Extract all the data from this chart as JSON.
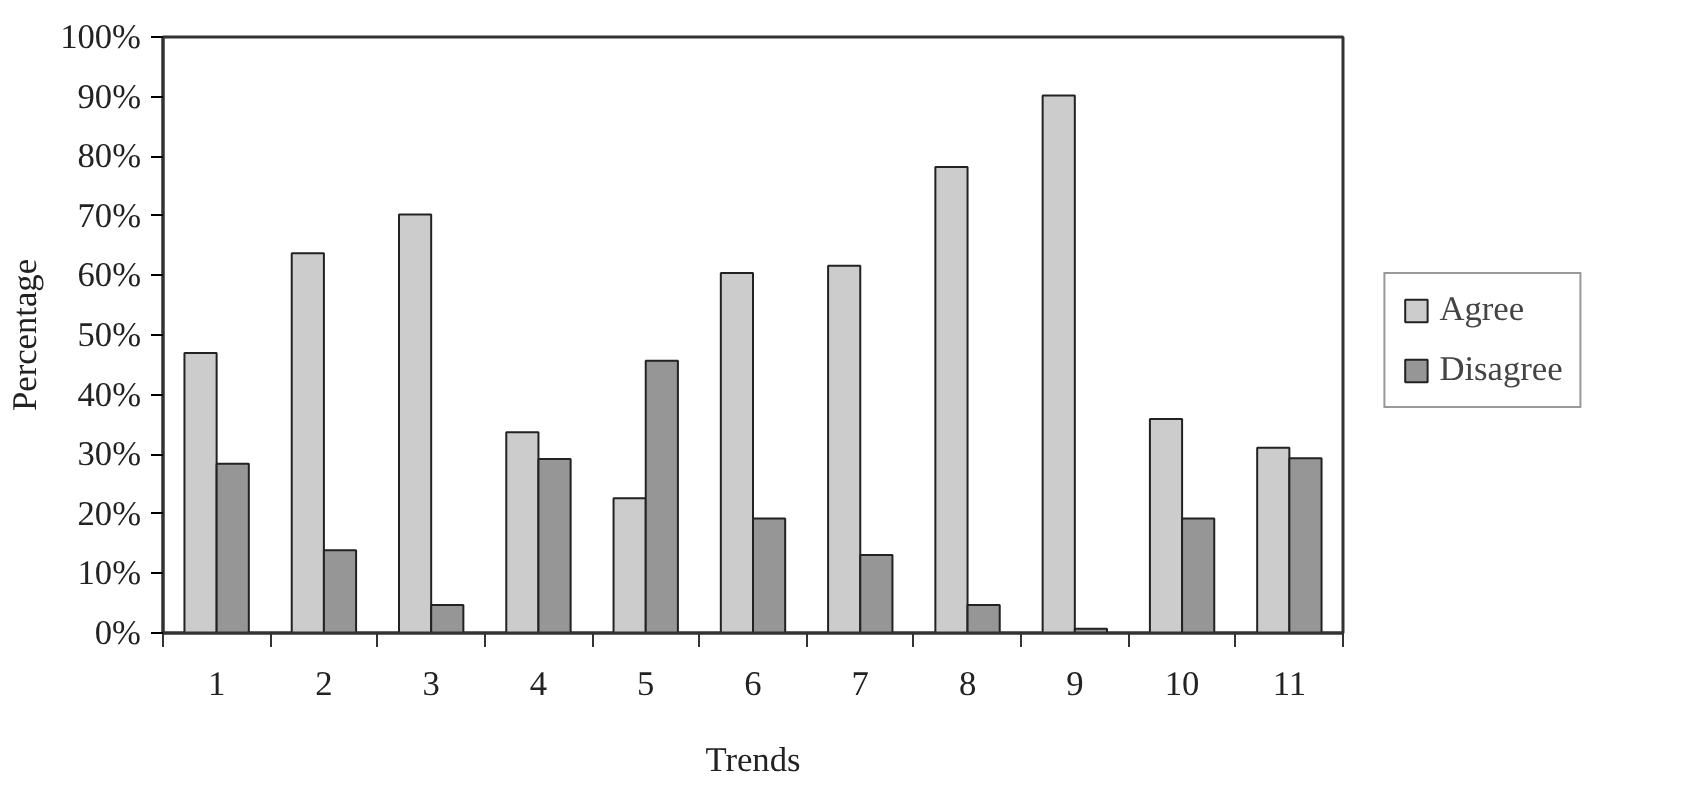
{
  "chart_data": {
    "type": "bar",
    "xlabel": "Trends",
    "ylabel": "Percentage",
    "categories": [
      "1",
      "2",
      "3",
      "4",
      "5",
      "6",
      "7",
      "8",
      "9",
      "10",
      "11"
    ],
    "series": [
      {
        "name": "Agree",
        "color": "#cccccc",
        "values": [
          47.0,
          63.7,
          70.2,
          33.7,
          22.6,
          60.4,
          61.6,
          78.2,
          90.2,
          35.9,
          31.1
        ]
      },
      {
        "name": "Disagree",
        "color": "#969696",
        "values": [
          28.4,
          13.9,
          4.7,
          29.2,
          45.7,
          19.2,
          13.1,
          4.7,
          0.7,
          19.2,
          29.3
        ]
      }
    ],
    "ylim": [
      0,
      100
    ],
    "yticks": [
      {
        "value": 0,
        "label": "0%"
      },
      {
        "value": 10,
        "label": "10%"
      },
      {
        "value": 20,
        "label": "20%"
      },
      {
        "value": 30,
        "label": "30%"
      },
      {
        "value": 40,
        "label": "40%"
      },
      {
        "value": 50,
        "label": "50%"
      },
      {
        "value": 60,
        "label": "60%"
      },
      {
        "value": 70,
        "label": "70%"
      },
      {
        "value": 80,
        "label": "80%"
      },
      {
        "value": 90,
        "label": "90%"
      },
      {
        "value": 100,
        "label": "100%"
      }
    ],
    "grid": false,
    "legend": "right"
  }
}
